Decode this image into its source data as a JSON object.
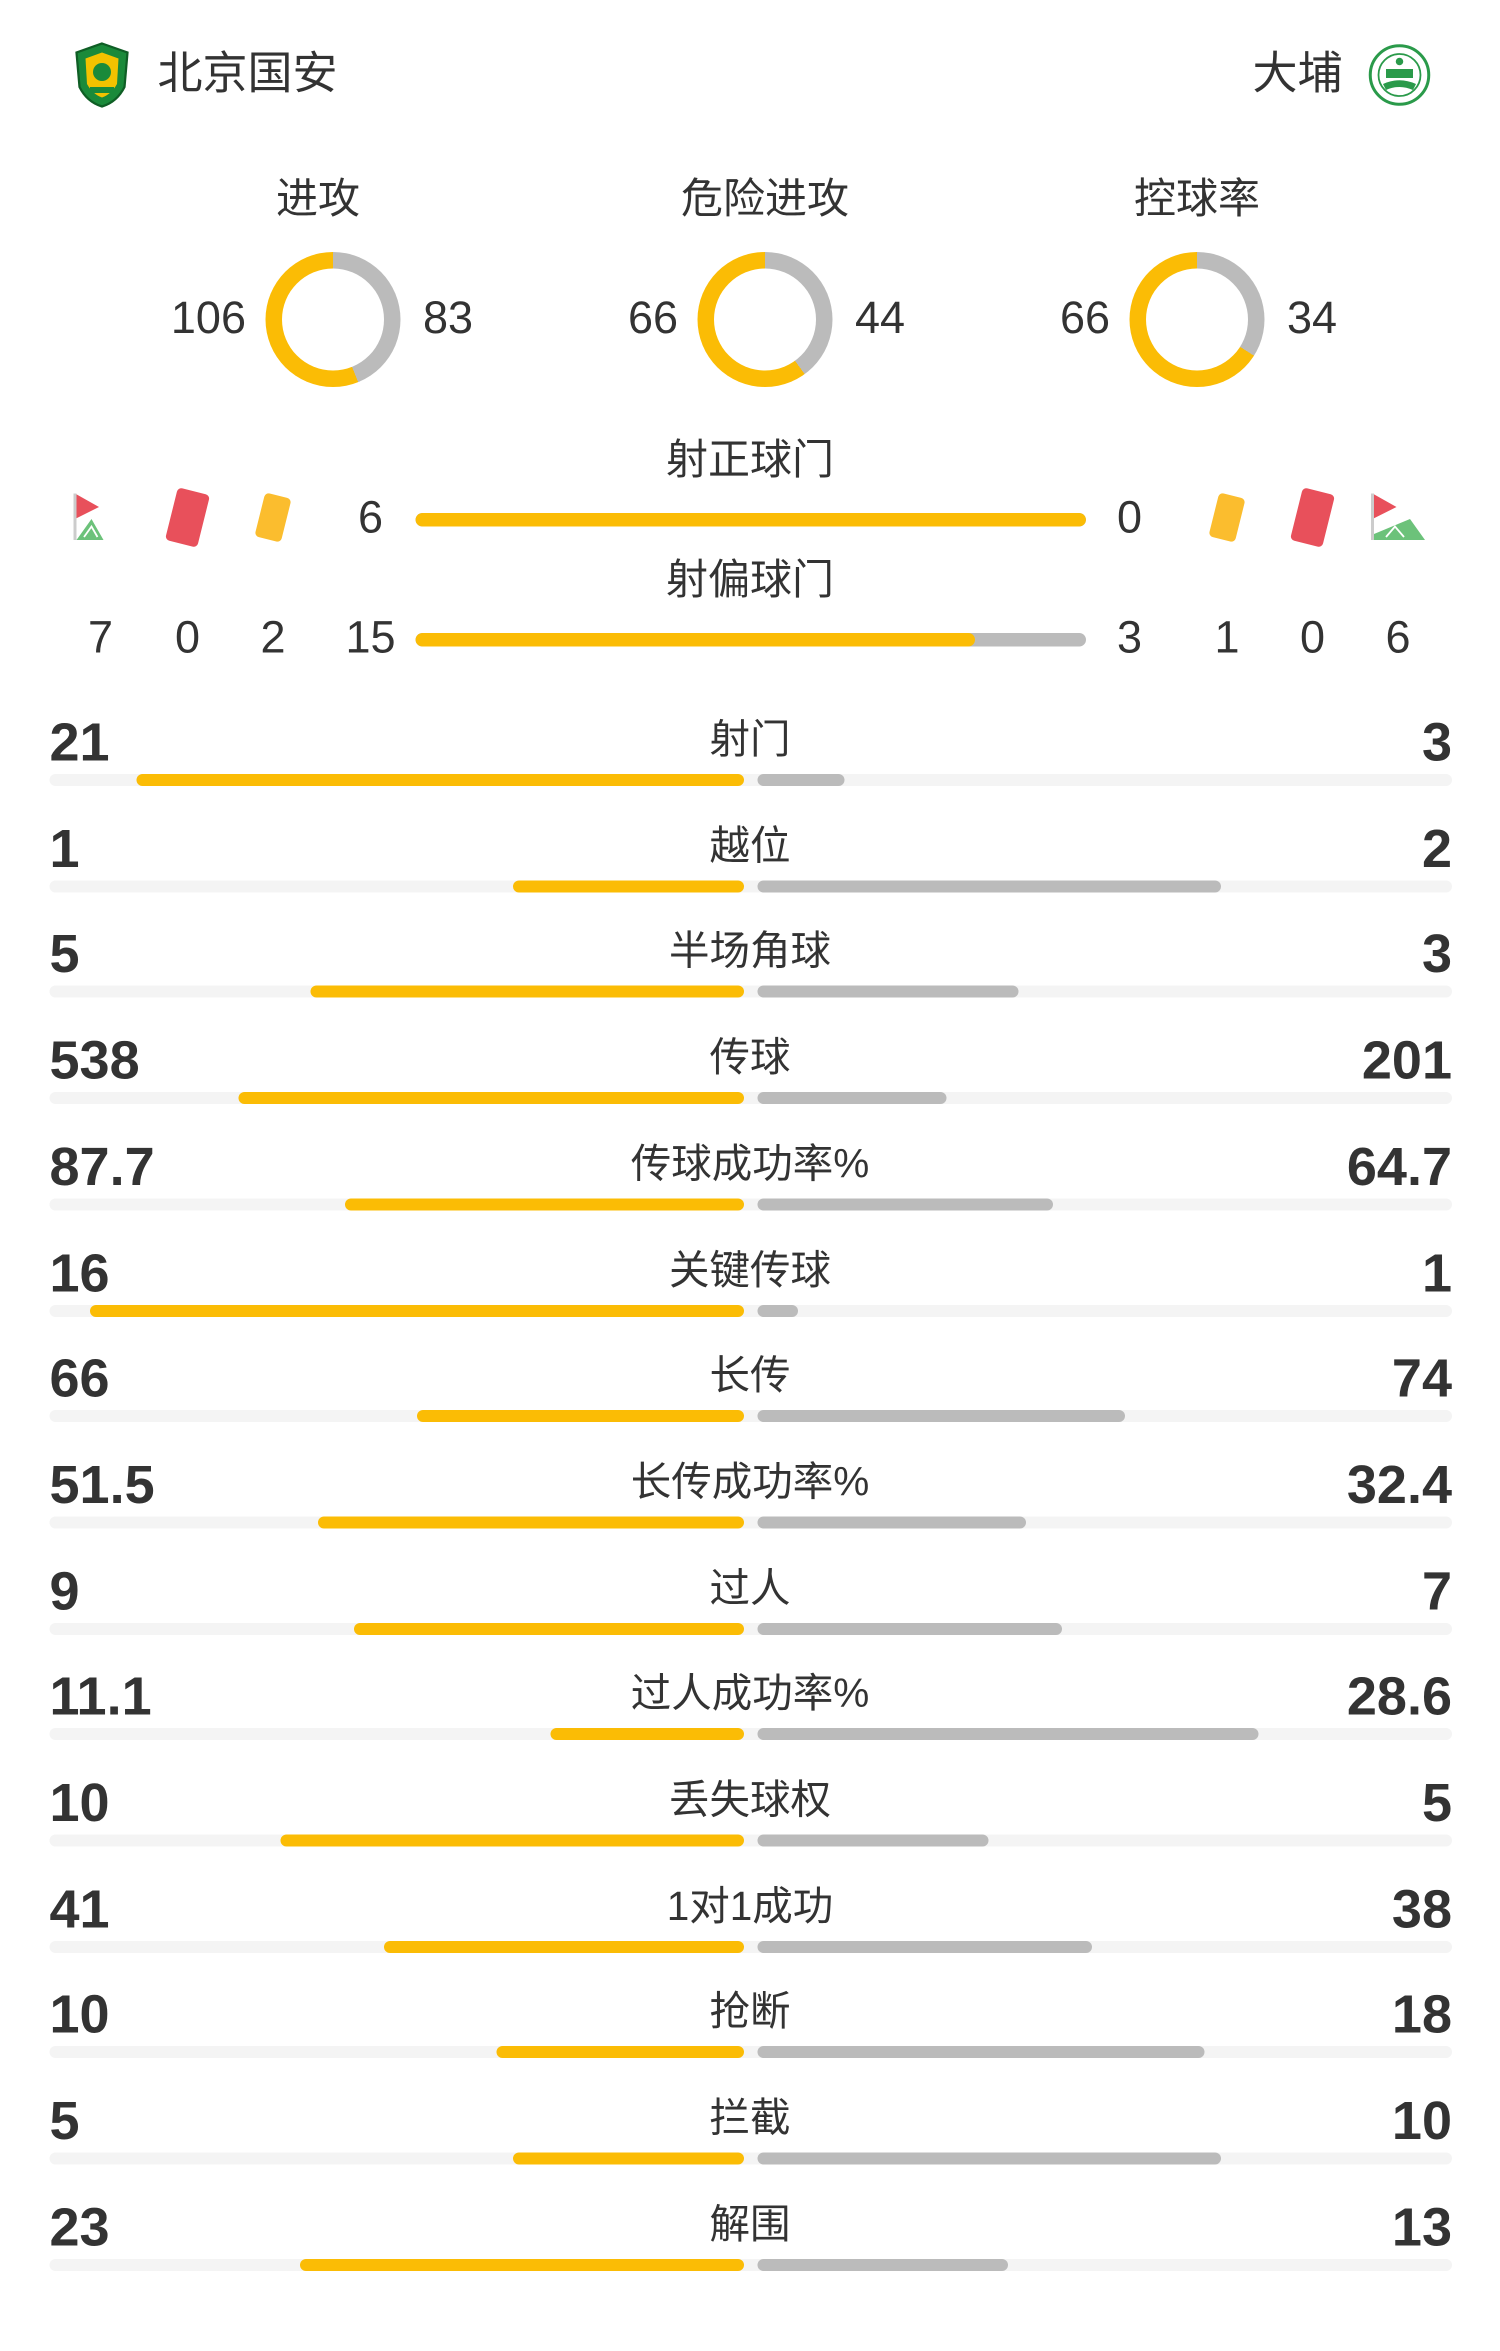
{
  "header": {
    "home_team": "北京国安",
    "away_team": "大埔",
    "home_logo": "guoan-crest-logo",
    "away_logo": "tai-po-crest-logo"
  },
  "colors": {
    "home": "#fbbc05",
    "away": "#bbbbbb",
    "track": "#f4f4f4",
    "red_card": "#e8505b",
    "yellow_card": "#fbbd2e",
    "corner_green": "#6cc27a"
  },
  "donuts": [
    {
      "title": "进攻",
      "home": 106,
      "away": 83
    },
    {
      "title": "危险进攻",
      "home": 66,
      "away": 44
    },
    {
      "title": "控球率",
      "home": 66,
      "away": 34
    }
  ],
  "shots_on_target": {
    "label": "射正球门",
    "home": 6,
    "away": 0
  },
  "shots_off_target": {
    "label": "射偏球门",
    "home": 15,
    "away": 3
  },
  "home_counts": {
    "corners": 7,
    "red_cards": 0,
    "yellow_cards": 2
  },
  "away_counts": {
    "yellow_cards": 1,
    "red_cards": 0,
    "corners": 6
  },
  "stats": [
    {
      "label": "射门",
      "home": "21",
      "away": "3"
    },
    {
      "label": "越位",
      "home": "1",
      "away": "2"
    },
    {
      "label": "半场角球",
      "home": "5",
      "away": "3"
    },
    {
      "label": "传球",
      "home": "538",
      "away": "201"
    },
    {
      "label": "传球成功率%",
      "home": "87.7",
      "away": "64.7"
    },
    {
      "label": "关键传球",
      "home": "16",
      "away": "1"
    },
    {
      "label": "长传",
      "home": "66",
      "away": "74"
    },
    {
      "label": "长传成功率%",
      "home": "51.5",
      "away": "32.4"
    },
    {
      "label": "过人",
      "home": "9",
      "away": "7"
    },
    {
      "label": "过人成功率%",
      "home": "11.1",
      "away": "28.6"
    },
    {
      "label": "丢失球权",
      "home": "10",
      "away": "5"
    },
    {
      "label": "1对1成功",
      "home": "41",
      "away": "38"
    },
    {
      "label": "抢断",
      "home": "10",
      "away": "18"
    },
    {
      "label": "拦截",
      "home": "5",
      "away": "10"
    },
    {
      "label": "解围",
      "home": "23",
      "away": "13"
    }
  ]
}
